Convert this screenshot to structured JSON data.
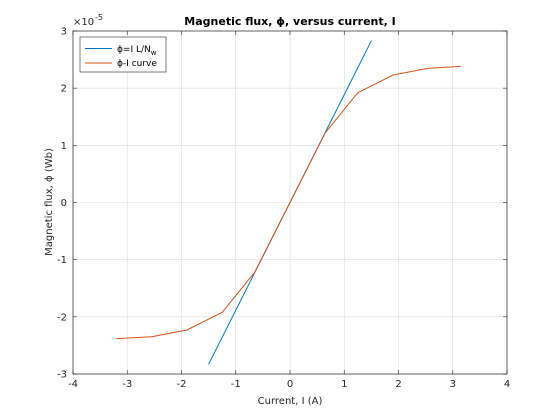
{
  "chart_data": {
    "type": "line",
    "title": "Magnetic flux, ϕ, versus current, I",
    "xlabel": "Current, I (A)",
    "ylabel": "Magnetic flux, ϕ (Wb)",
    "xlim": [
      -4,
      4
    ],
    "ylim": [
      -3,
      3
    ],
    "x_ticks": [
      "-4",
      "-3",
      "-2",
      "-1",
      "0",
      "1",
      "2",
      "3",
      "4"
    ],
    "y_ticks": [
      "-3",
      "-2",
      "-1",
      "0",
      "1",
      "2",
      "3"
    ],
    "y_exponent_label": "×10",
    "y_exponent_power": "-5",
    "grid": true,
    "legend_placement": "top-left",
    "series": [
      {
        "name_main": "ϕ=I L/N",
        "name_sub": "w",
        "color": "#0072bd",
        "x": [
          -1.5,
          1.5
        ],
        "y": [
          -2.83,
          2.83
        ]
      },
      {
        "name": "ϕ-I curve",
        "color": "#d95319",
        "x": [
          -3.2,
          -2.55,
          -1.9,
          -1.25,
          -0.65,
          0,
          0.65,
          1.25,
          1.9,
          2.55,
          3.15
        ],
        "y": [
          -2.38,
          -2.35,
          -2.23,
          -1.92,
          -1.22,
          0,
          1.22,
          1.92,
          2.23,
          2.35,
          2.38
        ]
      }
    ]
  }
}
